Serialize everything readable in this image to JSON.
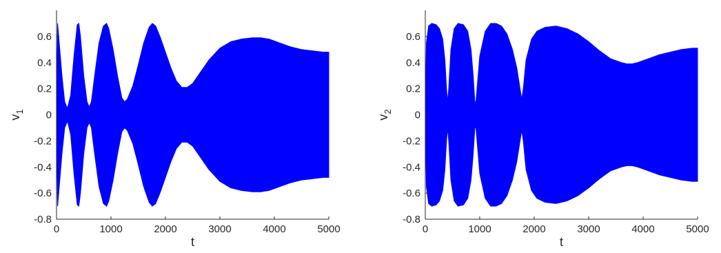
{
  "chart_data": [
    {
      "type": "area",
      "title": "",
      "xlabel": "t",
      "ylabel": "v",
      "ylabel_subscript": "1",
      "xlim": [
        0,
        5000
      ],
      "ylim": [
        -0.8,
        0.8
      ],
      "xticks": [
        0,
        1000,
        2000,
        3000,
        4000,
        5000
      ],
      "yticks": [
        -0.8,
        -0.6,
        -0.4,
        -0.2,
        0,
        0.2,
        0.4,
        0.6
      ],
      "ytick_labels": [
        "-0.8",
        "-0.6",
        "-0.4",
        "-0.2",
        "0",
        "0.2",
        "0.4",
        "0.6"
      ],
      "xtick_labels": [
        "0",
        "1000",
        "2000",
        "3000",
        "4000",
        "5000"
      ],
      "grid": false,
      "color": "#0000ff",
      "series": [
        {
          "description_kind": "symmetric oscillation envelope",
          "t": [
            0,
            20,
            50,
            100,
            150,
            200,
            260,
            320,
            380,
            410,
            440,
            500,
            560,
            600,
            640,
            700,
            780,
            860,
            920,
            960,
            1040,
            1120,
            1200,
            1250,
            1300,
            1400,
            1500,
            1600,
            1700,
            1760,
            1820,
            1900,
            2000,
            2100,
            2200,
            2300,
            2400,
            2500,
            2600,
            2800,
            3000,
            3200,
            3400,
            3600,
            3750,
            3900,
            4100,
            4300,
            4500,
            4700,
            4900,
            5000
          ],
          "amplitude": [
            0.05,
            0.7,
            0.55,
            0.3,
            0.1,
            0.05,
            0.15,
            0.45,
            0.69,
            0.7,
            0.6,
            0.3,
            0.1,
            0.06,
            0.1,
            0.3,
            0.55,
            0.68,
            0.7,
            0.66,
            0.5,
            0.3,
            0.13,
            0.1,
            0.12,
            0.22,
            0.38,
            0.55,
            0.67,
            0.7,
            0.68,
            0.6,
            0.48,
            0.36,
            0.26,
            0.21,
            0.21,
            0.24,
            0.3,
            0.42,
            0.51,
            0.56,
            0.58,
            0.59,
            0.59,
            0.58,
            0.55,
            0.52,
            0.5,
            0.49,
            0.48,
            0.48
          ]
        }
      ]
    },
    {
      "type": "area",
      "title": "",
      "xlabel": "t",
      "ylabel": "v",
      "ylabel_subscript": "2",
      "xlim": [
        0,
        5000
      ],
      "ylim": [
        -0.8,
        0.8
      ],
      "xticks": [
        0,
        1000,
        2000,
        3000,
        4000,
        5000
      ],
      "yticks": [
        -0.8,
        -0.6,
        -0.4,
        -0.2,
        0,
        0.2,
        0.4,
        0.6
      ],
      "ytick_labels": [
        "-0.8",
        "-0.6",
        "-0.4",
        "-0.2",
        "0",
        "0.2",
        "0.4",
        "0.6"
      ],
      "xtick_labels": [
        "0",
        "1000",
        "2000",
        "3000",
        "4000",
        "5000"
      ],
      "grid": false,
      "color": "#0000ff",
      "series": [
        {
          "description_kind": "symmetric oscillation envelope",
          "t": [
            0,
            20,
            60,
            120,
            200,
            260,
            320,
            360,
            390,
            410,
            430,
            470,
            530,
            600,
            700,
            780,
            840,
            880,
            910,
            930,
            960,
            1000,
            1100,
            1200,
            1300,
            1400,
            1500,
            1600,
            1680,
            1740,
            1770,
            1800,
            1850,
            1950,
            2050,
            2200,
            2400,
            2600,
            2800,
            3000,
            3200,
            3400,
            3600,
            3700,
            3800,
            3900,
            4100,
            4300,
            4500,
            4700,
            4900,
            5000
          ],
          "amplitude": [
            0.05,
            0.55,
            0.68,
            0.7,
            0.69,
            0.66,
            0.58,
            0.42,
            0.2,
            0.1,
            0.2,
            0.5,
            0.66,
            0.7,
            0.69,
            0.64,
            0.5,
            0.3,
            0.1,
            0.1,
            0.25,
            0.45,
            0.64,
            0.7,
            0.7,
            0.68,
            0.62,
            0.5,
            0.36,
            0.2,
            0.12,
            0.2,
            0.42,
            0.58,
            0.64,
            0.67,
            0.68,
            0.66,
            0.62,
            0.56,
            0.49,
            0.43,
            0.4,
            0.39,
            0.39,
            0.4,
            0.43,
            0.46,
            0.48,
            0.5,
            0.51,
            0.51
          ]
        }
      ]
    }
  ]
}
